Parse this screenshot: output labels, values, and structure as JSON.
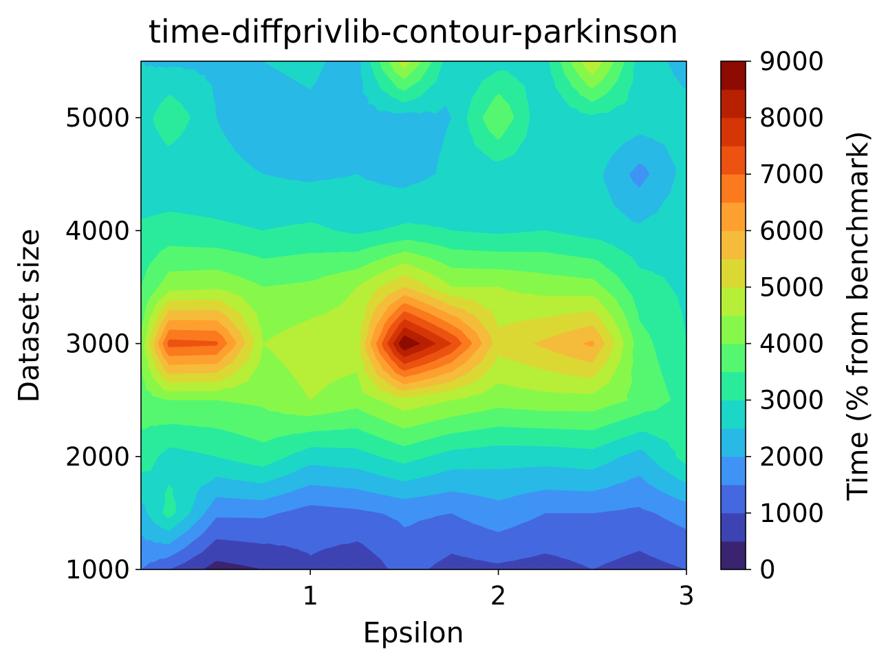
{
  "chart_data": {
    "type": "contour",
    "title": "time-diffprivlib-contour-parkinson",
    "xlabel": "Epsilon",
    "ylabel": "Dataset size",
    "colorbar_label": "Time (% from benchmark)",
    "xlim": [
      0.1,
      3.0
    ],
    "ylim": [
      1000,
      5500
    ],
    "x_ticks": [
      1,
      2,
      3
    ],
    "y_ticks": [
      1000,
      2000,
      3000,
      4000,
      5000
    ],
    "colorbar_range": [
      0,
      9000
    ],
    "colorbar_ticks": [
      0,
      1000,
      2000,
      3000,
      4000,
      5000,
      6000,
      7000,
      8000,
      9000
    ],
    "level_step": 500,
    "colormap": "turbo",
    "level_colors": [
      "#3a2470",
      "#3e43b4",
      "#4468e0",
      "#3f93f5",
      "#28b9e6",
      "#1cd6c8",
      "#2aeb9c",
      "#55f770",
      "#87f84a",
      "#b7ee38",
      "#dbd834",
      "#f4bc3a",
      "#fea030",
      "#fb7a1e",
      "#ec5210",
      "#d63506",
      "#b82002",
      "#8e0b02"
    ],
    "x": [
      0.1,
      0.25,
      0.5,
      0.75,
      1.0,
      1.25,
      1.5,
      1.75,
      2.0,
      2.25,
      2.5,
      2.75,
      3.0
    ],
    "y": [
      1000,
      1500,
      2000,
      2500,
      3000,
      3500,
      4000,
      4500,
      5000,
      5500
    ],
    "z": [
      [
        1500,
        1000,
        300,
        500,
        900,
        600,
        1200,
        800,
        900,
        800,
        1000,
        800,
        1000
      ],
      [
        2300,
        3200,
        1600,
        1600,
        1300,
        1400,
        1600,
        1500,
        1800,
        1500,
        1500,
        1400,
        1700
      ],
      [
        3300,
        2800,
        3000,
        3300,
        2700,
        2800,
        3200,
        2800,
        2700,
        2700,
        2800,
        2300,
        3200
      ],
      [
        3700,
        4000,
        4000,
        4100,
        4500,
        4200,
        4800,
        4500,
        4200,
        4300,
        4300,
        3900,
        3300
      ],
      [
        4100,
        7200,
        7100,
        4500,
        4800,
        4800,
        9000,
        7500,
        5200,
        5600,
        6100,
        3700,
        3000
      ],
      [
        3500,
        4300,
        4400,
        4000,
        4100,
        4500,
        5500,
        4500,
        4500,
        4300,
        4200,
        3200,
        2900
      ],
      [
        3100,
        3200,
        3100,
        3000,
        3100,
        2900,
        3100,
        3000,
        2900,
        3000,
        2800,
        2600,
        2800
      ],
      [
        2600,
        2600,
        2600,
        2500,
        2400,
        2500,
        2300,
        2600,
        2700,
        2800,
        2700,
        1800,
        2700
      ],
      [
        2700,
        3400,
        2500,
        2300,
        2400,
        2300,
        2300,
        2500,
        4000,
        2500,
        2900,
        2800,
        2700
      ],
      [
        2500,
        2400,
        2400,
        2500,
        2600,
        2300,
        4800,
        2600,
        2800,
        2800,
        5000,
        2800,
        2300
      ]
    ]
  }
}
